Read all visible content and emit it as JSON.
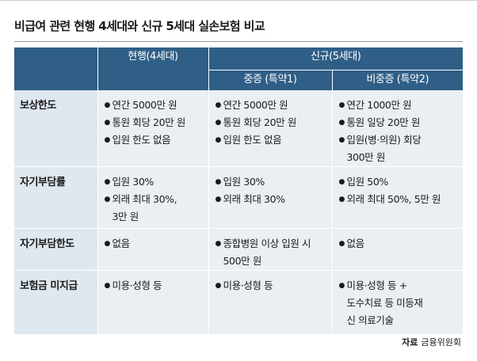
{
  "title": "비급여 관련 현행 4세대와 신규 5세대 실손보험 비교",
  "header": {
    "current": "현행(4세대)",
    "new": "신규(5세대)",
    "new_sub": [
      "중증 (특약1)",
      "비중증 (특약2)"
    ]
  },
  "rows": [
    {
      "label": "보상한도",
      "current": [
        [
          "연간 5000만 원"
        ],
        [
          "통원 회당 20만 원"
        ],
        [
          "입원 한도 없음"
        ]
      ],
      "severe": [
        [
          "연간 5000만 원"
        ],
        [
          "통원 회당 20만 원"
        ],
        [
          "입원 한도 없음"
        ]
      ],
      "nonsevere": [
        [
          "연간 1000만 원"
        ],
        [
          "통원 일당 20만 원"
        ],
        [
          "입원(병·의원) 회당",
          "300만 원"
        ]
      ]
    },
    {
      "label": "자기부담률",
      "current": [
        [
          "입원 30%"
        ],
        [
          "외래 최대 30%,",
          "3만 원"
        ]
      ],
      "severe": [
        [
          "입원 30%"
        ],
        [
          "외래 최대 30%"
        ]
      ],
      "nonsevere": [
        [
          "입원 50%"
        ],
        [
          "외래 최대 50%, 5만 원"
        ]
      ]
    },
    {
      "label": "자기부담한도",
      "current": [
        [
          "없음"
        ]
      ],
      "severe": [
        [
          "종합병원 이상 입원 시",
          "500만 원"
        ]
      ],
      "nonsevere": [
        [
          "없음"
        ]
      ]
    },
    {
      "label": "보험금 미지급",
      "current": [
        [
          "미용·성형 등"
        ]
      ],
      "severe": [
        [
          "미용·성형 등"
        ]
      ],
      "nonsevere": [
        [
          "미용·성형 등 +",
          "도수치료 등 미등재",
          "신 의료기술"
        ]
      ]
    }
  ],
  "source": {
    "label": "자료",
    "value": "금융위원회"
  },
  "colors": {
    "header_bg": "#2f5f86",
    "label_bg": "#dfe7ef",
    "cell_bg": "#eaeff4"
  }
}
